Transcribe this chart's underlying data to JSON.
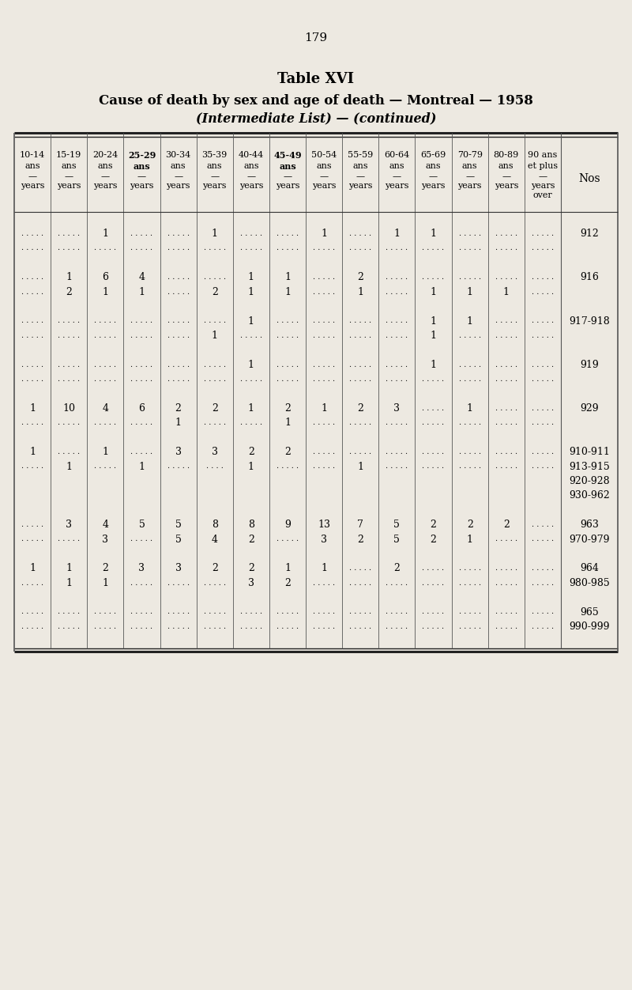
{
  "page_number": "179",
  "title1": "Table XVI",
  "title2": "Cause of death by sex and age of death — Montreal — 1958",
  "title3": "(Intermediate List) — (continued)",
  "background_color": "#ede9e1",
  "col_headers": [
    {
      "line1": "10-14",
      "line2": "ans",
      "line3": "—",
      "line4": "years",
      "line5": "",
      "bold": false
    },
    {
      "line1": "15-19",
      "line2": "ans",
      "line3": "—",
      "line4": "years",
      "line5": "",
      "bold": false
    },
    {
      "line1": "20-24",
      "line2": "ans",
      "line3": "—",
      "line4": "years",
      "line5": "",
      "bold": false
    },
    {
      "line1": "25-29",
      "line2": "ans",
      "line3": "—",
      "line4": "years",
      "line5": "",
      "bold": true
    },
    {
      "line1": "30-34",
      "line2": "ans",
      "line3": "—",
      "line4": "years",
      "line5": "",
      "bold": false
    },
    {
      "line1": "35-39",
      "line2": "ans",
      "line3": "—",
      "line4": "years",
      "line5": "",
      "bold": false
    },
    {
      "line1": "40-44",
      "line2": "ans",
      "line3": "—",
      "line4": "years",
      "line5": "",
      "bold": false
    },
    {
      "line1": "45-49",
      "line2": "ans",
      "line3": "—",
      "line4": "years",
      "line5": "",
      "bold": true
    },
    {
      "line1": "50-54",
      "line2": "ans",
      "line3": "—",
      "line4": "years",
      "line5": "",
      "bold": false
    },
    {
      "line1": "55-59",
      "line2": "ans",
      "line3": "—",
      "line4": "years",
      "line5": "",
      "bold": false
    },
    {
      "line1": "60-64",
      "line2": "ans",
      "line3": "—",
      "line4": "years",
      "line5": "",
      "bold": false
    },
    {
      "line1": "65-69",
      "line2": "ans",
      "line3": "—",
      "line4": "years",
      "line5": "",
      "bold": false
    },
    {
      "line1": "70-79",
      "line2": "ans",
      "line3": "—",
      "line4": "years",
      "line5": "",
      "bold": false
    },
    {
      "line1": "80-89",
      "line2": "ans",
      "line3": "—",
      "line4": "years",
      "line5": "",
      "bold": false
    },
    {
      "line1": "90 ans",
      "line2": "et plus",
      "line3": "—",
      "line4": "years",
      "line5": "over",
      "bold": false
    }
  ],
  "rows": [
    {
      "nos": "",
      "sp": true,
      "data": [
        "",
        "",
        "",
        "",
        "",
        "",
        "",
        "",
        "",
        "",
        "",
        "",
        "",
        "",
        ""
      ]
    },
    {
      "nos": "912",
      "sp": false,
      "data": [
        ". . . . .",
        ". . . . .",
        "1",
        ". . . . .",
        ". . . . .",
        "1",
        ". . . . .",
        ". . . . .",
        "1",
        ". . . . .",
        "1",
        "1",
        ". . . . .",
        ". . . . .",
        ". . . . ."
      ]
    },
    {
      "nos": "",
      "sp": false,
      "data": [
        ". . . . .",
        ". . . . .",
        ". . . . .",
        ". . . . .",
        ". . . . .",
        ". . . . .",
        ". . . . .",
        ". . . . .",
        ". . . . .",
        ". . . . .",
        ". . . . .",
        ". . . . .",
        ". . . . .",
        ". . . . .",
        ". . . . ."
      ]
    },
    {
      "nos": "",
      "sp": true,
      "data": [
        "",
        "",
        "",
        "",
        "",
        "",
        "",
        "",
        "",
        "",
        "",
        "",
        "",
        "",
        ""
      ]
    },
    {
      "nos": "916",
      "sp": false,
      "data": [
        ". . . . .",
        "1",
        "6",
        "4",
        ". . . . .",
        ". . . . .",
        "1",
        "1",
        ". . . . .",
        "2",
        ". . . . .",
        ". . . . .",
        ". . . . .",
        ". . . . .",
        ". . . . ."
      ]
    },
    {
      "nos": "",
      "sp": false,
      "data": [
        ". . . . .",
        "2",
        "1",
        "1",
        ". . . . .",
        "2",
        "1",
        "1",
        ". . . . .",
        "1",
        ". . . . .",
        "1",
        "1",
        "1",
        ". . . . ."
      ]
    },
    {
      "nos": "",
      "sp": true,
      "data": [
        "",
        "",
        "",
        "",
        "",
        "",
        "",
        "",
        "",
        "",
        "",
        "",
        "",
        "",
        ""
      ]
    },
    {
      "nos": "917-918",
      "sp": false,
      "data": [
        ". . . . .",
        ". . . . .",
        ". . . . .",
        ". . . . .",
        ". . . . .",
        ". . . . .",
        "1",
        ". . . . .",
        ". . . . .",
        ". . . . .",
        ". . . . .",
        "1",
        "1",
        ". . . . .",
        ". . . . ."
      ]
    },
    {
      "nos": "",
      "sp": false,
      "data": [
        ". . . . .",
        ". . . . .",
        ". . . . .",
        ". . . . .",
        ". . . . .",
        "1",
        ". . . . .",
        ". . . . .",
        ". . . . .",
        ". . . . .",
        ". . . . .",
        "1",
        ". . . . .",
        ". . . . .",
        ". . . . ."
      ]
    },
    {
      "nos": "",
      "sp": true,
      "data": [
        "",
        "",
        "",
        "",
        "",
        "",
        "",
        "",
        "",
        "",
        "",
        "",
        "",
        "",
        ""
      ]
    },
    {
      "nos": "919",
      "sp": false,
      "data": [
        ". . . . .",
        ". . . . .",
        ". . . . .",
        ". . . . .",
        ". . . . .",
        ". . . . .",
        "1",
        ". . . . .",
        ". . . . .",
        ". . . . .",
        ". . . . .",
        "1",
        ". . . . .",
        ". . . . .",
        ". . . . ."
      ]
    },
    {
      "nos": "",
      "sp": false,
      "data": [
        ". . . . .",
        ". . . . .",
        ". . . . .",
        ". . . . .",
        ". . . . .",
        ". . . . .",
        ". . . . .",
        ". . . . .",
        ". . . . .",
        ". . . . .",
        ". . . . .",
        ". . . . .",
        ". . . . .",
        ". . . . .",
        ". . . . ."
      ]
    },
    {
      "nos": "",
      "sp": true,
      "data": [
        "",
        "",
        "",
        "",
        "",
        "",
        "",
        "",
        "",
        "",
        "",
        "",
        "",
        "",
        ""
      ]
    },
    {
      "nos": "929",
      "sp": false,
      "data": [
        "1",
        "10",
        "4",
        "6",
        "2",
        "2",
        "1",
        "2",
        "1",
        "2",
        "3",
        ". . . . .",
        "1",
        ". . . . .",
        ". . . . ."
      ]
    },
    {
      "nos": "",
      "sp": false,
      "data": [
        ". . . . .",
        ". . . . .",
        ". . . . .",
        ". . . . .",
        "1",
        ". . . . .",
        ". . . . .",
        "1",
        ". . . . .",
        ". . . . .",
        ". . . . .",
        ". . . . .",
        ". . . . .",
        ". . . . .",
        ". . . . ."
      ]
    },
    {
      "nos": "",
      "sp": true,
      "data": [
        "",
        "",
        "",
        "",
        "",
        "",
        "",
        "",
        "",
        "",
        "",
        "",
        "",
        "",
        ""
      ]
    },
    {
      "nos": "910-911",
      "sp": false,
      "data": [
        "1",
        ". . . . .",
        "1",
        ". . . . .",
        "3",
        "3",
        "2",
        "2",
        ". . . . .",
        ". . . . .",
        ". . . . .",
        ". . . . .",
        ". . . . .",
        ". . . . .",
        ". . . . ."
      ]
    },
    {
      "nos": "913-915",
      "sp": false,
      "data": [
        ". . . . .",
        "1",
        ". . . . .",
        "1",
        ". . . . .",
        ". . . .",
        "1",
        ". . . . .",
        ". . . . .",
        "1",
        ". . . . .",
        ". . . . .",
        ". . . . .",
        ". . . . .",
        ". . . . ."
      ]
    },
    {
      "nos": "920-928",
      "sp": false,
      "data": [
        "",
        "",
        "",
        "",
        "",
        "",
        "",
        "",
        "",
        "",
        "",
        "",
        "",
        "",
        ""
      ]
    },
    {
      "nos": "930-962",
      "sp": false,
      "data": [
        "",
        "",
        "",
        "",
        "",
        "",
        "",
        "",
        "",
        "",
        "",
        "",
        "",
        "",
        ""
      ]
    },
    {
      "nos": "",
      "sp": true,
      "data": [
        "",
        "",
        "",
        "",
        "",
        "",
        "",
        "",
        "",
        "",
        "",
        "",
        "",
        "",
        ""
      ]
    },
    {
      "nos": "963",
      "sp": false,
      "data": [
        ". . . . .",
        "3",
        "4",
        "5",
        "5",
        "8",
        "8",
        "9",
        "13",
        "7",
        "5",
        "2",
        "2",
        "2",
        ". . . . ."
      ]
    },
    {
      "nos": "970-979",
      "sp": false,
      "data": [
        ". . . . .",
        ". . . . .",
        "3",
        ". . . . .",
        "5",
        "4",
        "2",
        ". . . . .",
        "3",
        "2",
        "5",
        "2",
        "1",
        ". . . . .",
        ". . . . ."
      ]
    },
    {
      "nos": "",
      "sp": true,
      "data": [
        "",
        "",
        "",
        "",
        "",
        "",
        "",
        "",
        "",
        "",
        "",
        "",
        "",
        "",
        ""
      ]
    },
    {
      "nos": "964",
      "sp": false,
      "data": [
        "1",
        "1",
        "2",
        "3",
        "3",
        "2",
        "2",
        "1",
        "1",
        ". . . . .",
        "2",
        ". . . . .",
        ". . . . .",
        ". . . . .",
        ". . . . ."
      ]
    },
    {
      "nos": "980-985",
      "sp": false,
      "data": [
        ". . . . .",
        "1",
        "1",
        ". . . . .",
        ". . . . .",
        ". . . . .",
        "3",
        "2",
        ". . . . .",
        ". . . . .",
        ". . . . .",
        ". . . . .",
        ". . . . .",
        ". . . . .",
        ". . . . ."
      ]
    },
    {
      "nos": "",
      "sp": true,
      "data": [
        "",
        "",
        "",
        "",
        "",
        "",
        "",
        "",
        "",
        "",
        "",
        "",
        "",
        "",
        ""
      ]
    },
    {
      "nos": "965",
      "sp": false,
      "data": [
        ". . . . .",
        ". . . . .",
        ". . . . .",
        ". . . . .",
        ". . . . .",
        ". . . . .",
        ". . . . .",
        ". . . . .",
        ". . . . .",
        ". . . . .",
        ". . . . .",
        ". . . . .",
        ". . . . .",
        ". . . . .",
        ". . . . ."
      ]
    },
    {
      "nos": "990-999",
      "sp": false,
      "data": [
        ". . . . .",
        ". . . . .",
        ". . . . .",
        ". . . . .",
        ". . . . .",
        ". . . . .",
        ". . . . .",
        ". . . . .",
        ". . . . .",
        ". . . . .",
        ". . . . .",
        ". . . . .",
        ". . . . .",
        ". . . . .",
        ". . . . ."
      ]
    },
    {
      "nos": "",
      "sp": true,
      "data": [
        "",
        "",
        "",
        "",
        "",
        "",
        "",
        "",
        "",
        "",
        "",
        "",
        "",
        "",
        ""
      ]
    }
  ]
}
